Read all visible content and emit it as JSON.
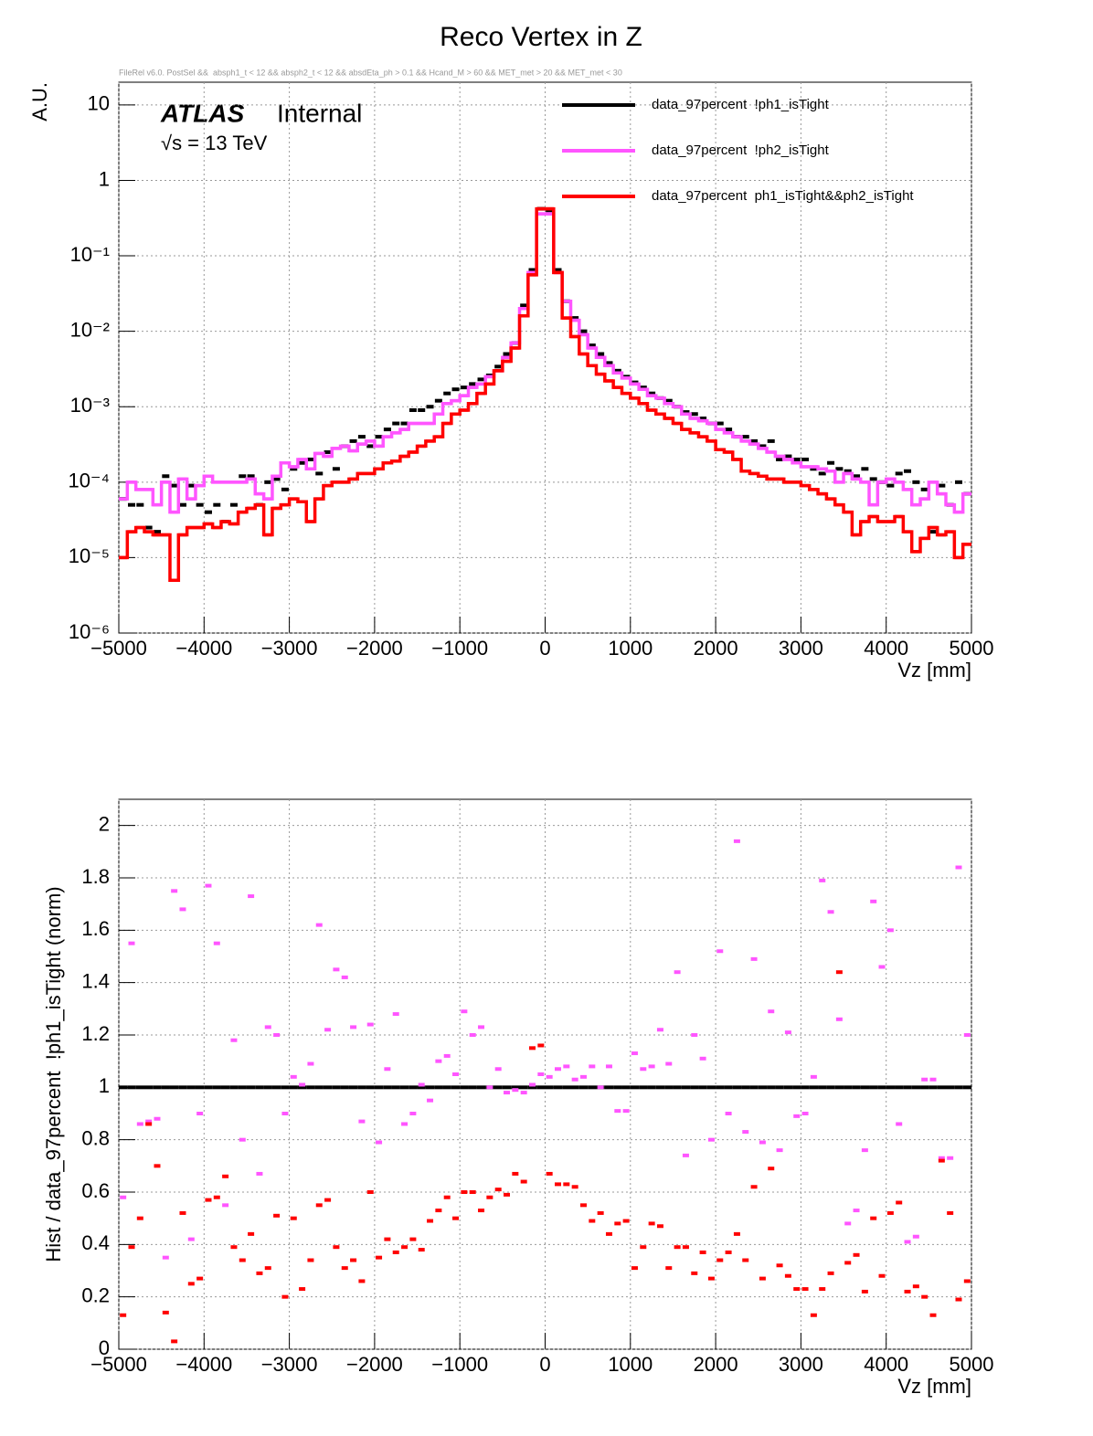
{
  "chart_data": [
    {
      "type": "histogram",
      "title": "Reco Vertex in Z",
      "subtitle": "FileRel v6.0. PostSel &&  absph1_t < 12 && absph2_t < 12 && absdEta_ph > 0.1 && Hcand_M > 60 && MET_met > 20 && MET_met < 30",
      "experiment": "ATLAS",
      "status": "Internal",
      "energy": "√s = 13 TeV",
      "y_label": "A.U.",
      "x_label": "Vz [mm]",
      "log_y": true,
      "grid": true,
      "legend": "top-right",
      "bins": [
        -5000,
        -4900,
        -4800,
        -4700,
        -4600,
        -4500,
        -4400,
        -4300,
        -4200,
        -4100,
        -4000,
        -3900,
        -3800,
        -3700,
        -3600,
        -3500,
        -3400,
        -3300,
        -3200,
        -3100,
        -3000,
        -2900,
        -2800,
        -2700,
        -2600,
        -2500,
        -2400,
        -2300,
        -2200,
        -2100,
        -2000,
        -1900,
        -1800,
        -1700,
        -1600,
        -1500,
        -1400,
        -1300,
        -1200,
        -1100,
        -1000,
        -900,
        -800,
        -700,
        -600,
        -500,
        -400,
        -300,
        -200,
        -100,
        0,
        100,
        200,
        300,
        400,
        500,
        600,
        700,
        800,
        900,
        1000,
        1100,
        1200,
        1300,
        1400,
        1500,
        1600,
        1700,
        1800,
        1900,
        2000,
        2100,
        2200,
        2300,
        2400,
        2500,
        2600,
        2700,
        2800,
        2900,
        3000,
        3100,
        3200,
        3300,
        3400,
        3500,
        3600,
        3700,
        3800,
        3900,
        4000,
        4100,
        4200,
        4300,
        4400,
        4500,
        4600,
        4700,
        4800,
        4900,
        5000
      ],
      "xlim": [
        -5000,
        5000
      ],
      "xticks": [
        {
          "value": -5000,
          "label": "−5000"
        },
        {
          "value": -4000,
          "label": "−4000"
        },
        {
          "value": -3000,
          "label": "−3000"
        },
        {
          "value": -2000,
          "label": "−2000"
        },
        {
          "value": -1000,
          "label": "−1000"
        },
        0,
        1000,
        2000,
        3000,
        4000,
        5000
      ],
      "ylim": [
        1e-06,
        20
      ],
      "yticks": [
        {
          "value": 1e-06,
          "label": "10⁻⁶"
        },
        {
          "value": 1e-05,
          "label": "10⁻⁵"
        },
        {
          "value": 0.0001,
          "label": "10⁻⁴"
        },
        {
          "value": 0.001,
          "label": "10⁻³"
        },
        {
          "value": 0.01,
          "label": "10⁻²"
        },
        {
          "value": 0.1,
          "label": "10⁻¹"
        },
        1,
        10
      ],
      "series": [
        {
          "name": "data_97percent  !ph1_isTight",
          "color": "#000000",
          "style": "markers",
          "values": [
            6e-05,
            5e-05,
            5e-05,
            2.5e-05,
            2.2e-05,
            0.00012,
            9e-05,
            5e-05,
            9e-05,
            5e-05,
            4e-05,
            5e-05,
            3e-05,
            5e-05,
            0.00012,
            0.00012,
            5e-05,
            0.0001,
            0.00011,
            8e-05,
            0.00015,
            0.00018,
            0.0002,
            0.00013,
            0.00025,
            0.00015,
            0.0003,
            0.00035,
            0.0004,
            0.0003,
            0.0004,
            0.0005,
            0.0006,
            0.0006,
            0.0009,
            0.0009,
            0.001,
            0.0012,
            0.0015,
            0.0017,
            0.0018,
            0.002,
            0.0023,
            0.0026,
            0.0034,
            0.005,
            0.007,
            0.022,
            0.065,
            0.42,
            0.4,
            0.065,
            0.025,
            0.015,
            0.01,
            0.0065,
            0.005,
            0.0038,
            0.003,
            0.0025,
            0.0021,
            0.0018,
            0.0015,
            0.0013,
            0.0012,
            0.001,
            0.00085,
            0.0008,
            0.0007,
            0.0006,
            0.0006,
            0.0005,
            0.0004,
            0.0004,
            0.00035,
            0.0003,
            0.00035,
            0.0002,
            0.00022,
            0.0002,
            0.0002,
            0.00015,
            0.00013,
            0.00018,
            0.00015,
            0.00014,
            0.00012,
            0.00015,
            0.00011,
            0.0001,
            9e-05,
            0.00013,
            0.00014,
            0.0001,
            8e-05,
            2.2e-05,
            9e-05,
            5e-05,
            0.0001,
            7e-05
          ]
        },
        {
          "name": "data_97percent  !ph2_isTight",
          "color": "#ff55ff",
          "style": "step",
          "values": [
            6e-05,
            0.0001,
            8e-05,
            8e-05,
            5e-05,
            0.0001,
            4e-05,
            0.00011,
            6e-05,
            9e-05,
            0.00012,
            0.0001,
            0.0001,
            0.0001,
            0.0001,
            0.00011,
            7e-05,
            6e-05,
            0.00012,
            0.00018,
            0.00016,
            0.0002,
            0.00015,
            0.00024,
            0.00022,
            0.00028,
            0.0003,
            0.00026,
            0.00032,
            0.00035,
            0.0003,
            0.0004,
            0.00045,
            0.0005,
            0.0006,
            0.0006,
            0.0006,
            0.0008,
            0.0011,
            0.0012,
            0.0014,
            0.0018,
            0.002,
            0.0025,
            0.003,
            0.0045,
            0.007,
            0.02,
            0.06,
            0.36,
            0.36,
            0.06,
            0.025,
            0.014,
            0.009,
            0.006,
            0.0045,
            0.0035,
            0.0028,
            0.0024,
            0.002,
            0.0017,
            0.0014,
            0.0013,
            0.0011,
            0.001,
            0.0008,
            0.0007,
            0.00065,
            0.0006,
            0.0005,
            0.00045,
            0.0004,
            0.00035,
            0.00032,
            0.00028,
            0.00025,
            0.00022,
            0.0002,
            0.00018,
            0.00016,
            0.00016,
            0.00015,
            0.00014,
            0.0001,
            0.00013,
            0.00011,
            0.0001,
            5e-05,
            0.0001,
            0.00011,
            0.0001,
            8e-05,
            5e-05,
            6e-05,
            0.0001,
            7e-05,
            5e-05,
            4e-05,
            7e-05
          ]
        },
        {
          "name": "data_97percent  ph1_isTight&&ph2_isTight",
          "color": "#ff0000",
          "style": "step",
          "values": [
            1e-05,
            2.2e-05,
            2.5e-05,
            2.2e-05,
            2e-05,
            2e-05,
            5e-06,
            2e-05,
            2.5e-05,
            2.5e-05,
            2.8e-05,
            2.5e-05,
            3e-05,
            2.8e-05,
            4e-05,
            4.5e-05,
            5e-05,
            2e-05,
            4.5e-05,
            5e-05,
            6e-05,
            5.5e-05,
            3e-05,
            6e-05,
            9e-05,
            0.0001,
            0.0001,
            0.00011,
            0.00013,
            0.00013,
            0.00015,
            0.00018,
            0.00019,
            0.00022,
            0.00025,
            0.0003,
            0.00035,
            0.0004,
            0.0006,
            0.0008,
            0.0009,
            0.0011,
            0.0015,
            0.002,
            0.003,
            0.004,
            0.006,
            0.016,
            0.056,
            0.42,
            0.42,
            0.06,
            0.015,
            0.0085,
            0.005,
            0.0035,
            0.0027,
            0.0022,
            0.0018,
            0.0015,
            0.0013,
            0.0011,
            0.0009,
            0.0008,
            0.0007,
            0.0006,
            0.0005,
            0.00045,
            0.0004,
            0.00035,
            0.00027,
            0.00025,
            0.0002,
            0.00014,
            0.00013,
            0.00012,
            0.00011,
            0.00011,
            0.0001,
            0.0001,
            9e-05,
            8e-05,
            7e-05,
            6e-05,
            5e-05,
            4e-05,
            2e-05,
            3e-05,
            3.5e-05,
            3e-05,
            3e-05,
            3.5e-05,
            2.2e-05,
            1.2e-05,
            1.8e-05,
            2.5e-05,
            2e-05,
            2.2e-05,
            1e-05,
            1.5e-05
          ]
        }
      ]
    },
    {
      "type": "histogram",
      "y_label": "Hist / data_97percent  !ph1_isTight (norm)",
      "x_label": "Vz [mm]",
      "log_y": false,
      "grid": true,
      "bins": [
        -5000,
        -4900,
        -4800,
        -4700,
        -4600,
        -4500,
        -4400,
        -4300,
        -4200,
        -4100,
        -4000,
        -3900,
        -3800,
        -3700,
        -3600,
        -3500,
        -3400,
        -3300,
        -3200,
        -3100,
        -3000,
        -2900,
        -2800,
        -2700,
        -2600,
        -2500,
        -2400,
        -2300,
        -2200,
        -2100,
        -2000,
        -1900,
        -1800,
        -1700,
        -1600,
        -1500,
        -1400,
        -1300,
        -1200,
        -1100,
        -1000,
        -900,
        -800,
        -700,
        -600,
        -500,
        -400,
        -300,
        -200,
        -100,
        0,
        100,
        200,
        300,
        400,
        500,
        600,
        700,
        800,
        900,
        1000,
        1100,
        1200,
        1300,
        1400,
        1500,
        1600,
        1700,
        1800,
        1900,
        2000,
        2100,
        2200,
        2300,
        2400,
        2500,
        2600,
        2700,
        2800,
        2900,
        3000,
        3100,
        3200,
        3300,
        3400,
        3500,
        3600,
        3700,
        3800,
        3900,
        4000,
        4100,
        4200,
        4300,
        4400,
        4500,
        4600,
        4700,
        4800,
        4900,
        5000
      ],
      "xlim": [
        -5000,
        5000
      ],
      "xticks": [
        {
          "value": -5000,
          "label": "−5000"
        },
        {
          "value": -4000,
          "label": "−4000"
        },
        {
          "value": -3000,
          "label": "−3000"
        },
        {
          "value": -2000,
          "label": "−2000"
        },
        {
          "value": -1000,
          "label": "−1000"
        },
        0,
        1000,
        2000,
        3000,
        4000,
        5000
      ],
      "ylim": [
        0,
        2.1
      ],
      "yticks": [
        0,
        0.2,
        0.4,
        0.6,
        0.8,
        1,
        1.2,
        1.4,
        1.6,
        1.8,
        2
      ],
      "series": [
        {
          "color": "#000000",
          "style": "markers",
          "values": [
            1,
            1,
            1,
            1,
            1,
            1,
            1,
            1,
            1,
            1,
            1,
            1,
            1,
            1,
            1,
            1,
            1,
            1,
            1,
            1,
            1,
            1,
            1,
            1,
            1,
            1,
            1,
            1,
            1,
            1,
            1,
            1,
            1,
            1,
            1,
            1,
            1,
            1,
            1,
            1,
            1,
            1,
            1,
            1,
            1,
            1,
            1,
            1,
            1,
            1,
            1,
            1,
            1,
            1,
            1,
            1,
            1,
            1,
            1,
            1,
            1,
            1,
            1,
            1,
            1,
            1,
            1,
            1,
            1,
            1,
            1,
            1,
            1,
            1,
            1,
            1,
            1,
            1,
            1,
            1,
            1,
            1,
            1,
            1,
            1,
            1,
            1,
            1,
            1,
            1,
            1,
            1,
            1,
            1,
            1,
            1,
            1,
            1,
            1,
            1
          ]
        },
        {
          "color": "#ff55ff",
          "style": "markers",
          "values": [
            0.58,
            1.55,
            0.86,
            0.87,
            0.88,
            0.35,
            1.75,
            1.68,
            0.42,
            0.9,
            1.77,
            1.55,
            0.55,
            1.18,
            0.8,
            1.73,
            0.67,
            1.23,
            1.2,
            0.9,
            1.04,
            1.01,
            1.09,
            1.62,
            1.22,
            1.45,
            1.42,
            1.23,
            0.87,
            1.24,
            0.79,
            1.07,
            1.28,
            0.86,
            0.9,
            1.01,
            0.95,
            1.1,
            1.12,
            1.05,
            1.29,
            1.2,
            1.23,
            1.0,
            1.07,
            0.98,
            0.99,
            0.98,
            1.01,
            1.05,
            1.04,
            1.07,
            1.08,
            1.03,
            1.04,
            1.08,
            1.0,
            1.08,
            0.91,
            0.91,
            1.13,
            1.07,
            1.08,
            1.22,
            1.09,
            1.44,
            0.74,
            1.2,
            1.11,
            0.8,
            1.52,
            0.9,
            1.94,
            0.83,
            1.49,
            0.79,
            1.29,
            0.76,
            1.21,
            0.89,
            0.9,
            1.04,
            1.79,
            1.67,
            1.26,
            0.48,
            0.53,
            0.76,
            1.71,
            1.46,
            1.6,
            0.86,
            0.41,
            0.43,
            1.03,
            1.03,
            0.73,
            0.73,
            1.84,
            1.2
          ]
        },
        {
          "color": "#ff0000",
          "style": "markers",
          "values": [
            0.13,
            0.39,
            0.5,
            0.86,
            0.7,
            0.14,
            0.03,
            0.52,
            0.25,
            0.27,
            0.57,
            0.58,
            0.66,
            0.39,
            0.34,
            0.44,
            0.29,
            0.31,
            0.51,
            0.2,
            0.5,
            0.23,
            0.34,
            0.55,
            0.57,
            0.39,
            0.31,
            0.34,
            0.26,
            0.6,
            0.35,
            0.42,
            0.37,
            0.39,
            0.42,
            0.38,
            0.49,
            0.53,
            0.58,
            0.5,
            0.6,
            0.6,
            0.53,
            0.58,
            0.61,
            0.59,
            0.67,
            0.64,
            1.15,
            1.16,
            0.67,
            0.63,
            0.63,
            0.62,
            0.55,
            0.49,
            0.52,
            0.44,
            0.48,
            0.49,
            0.31,
            0.39,
            0.48,
            0.47,
            0.31,
            0.39,
            0.39,
            0.29,
            0.37,
            0.27,
            0.34,
            0.37,
            0.44,
            0.34,
            0.62,
            0.27,
            0.69,
            0.32,
            0.28,
            0.23,
            0.23,
            0.13,
            0.23,
            0.29,
            1.44,
            0.33,
            0.36,
            0.22,
            0.5,
            0.28,
            0.52,
            0.56,
            0.22,
            0.24,
            0.2,
            0.13,
            0.72,
            0.52,
            0.19,
            0.26
          ]
        }
      ]
    }
  ]
}
